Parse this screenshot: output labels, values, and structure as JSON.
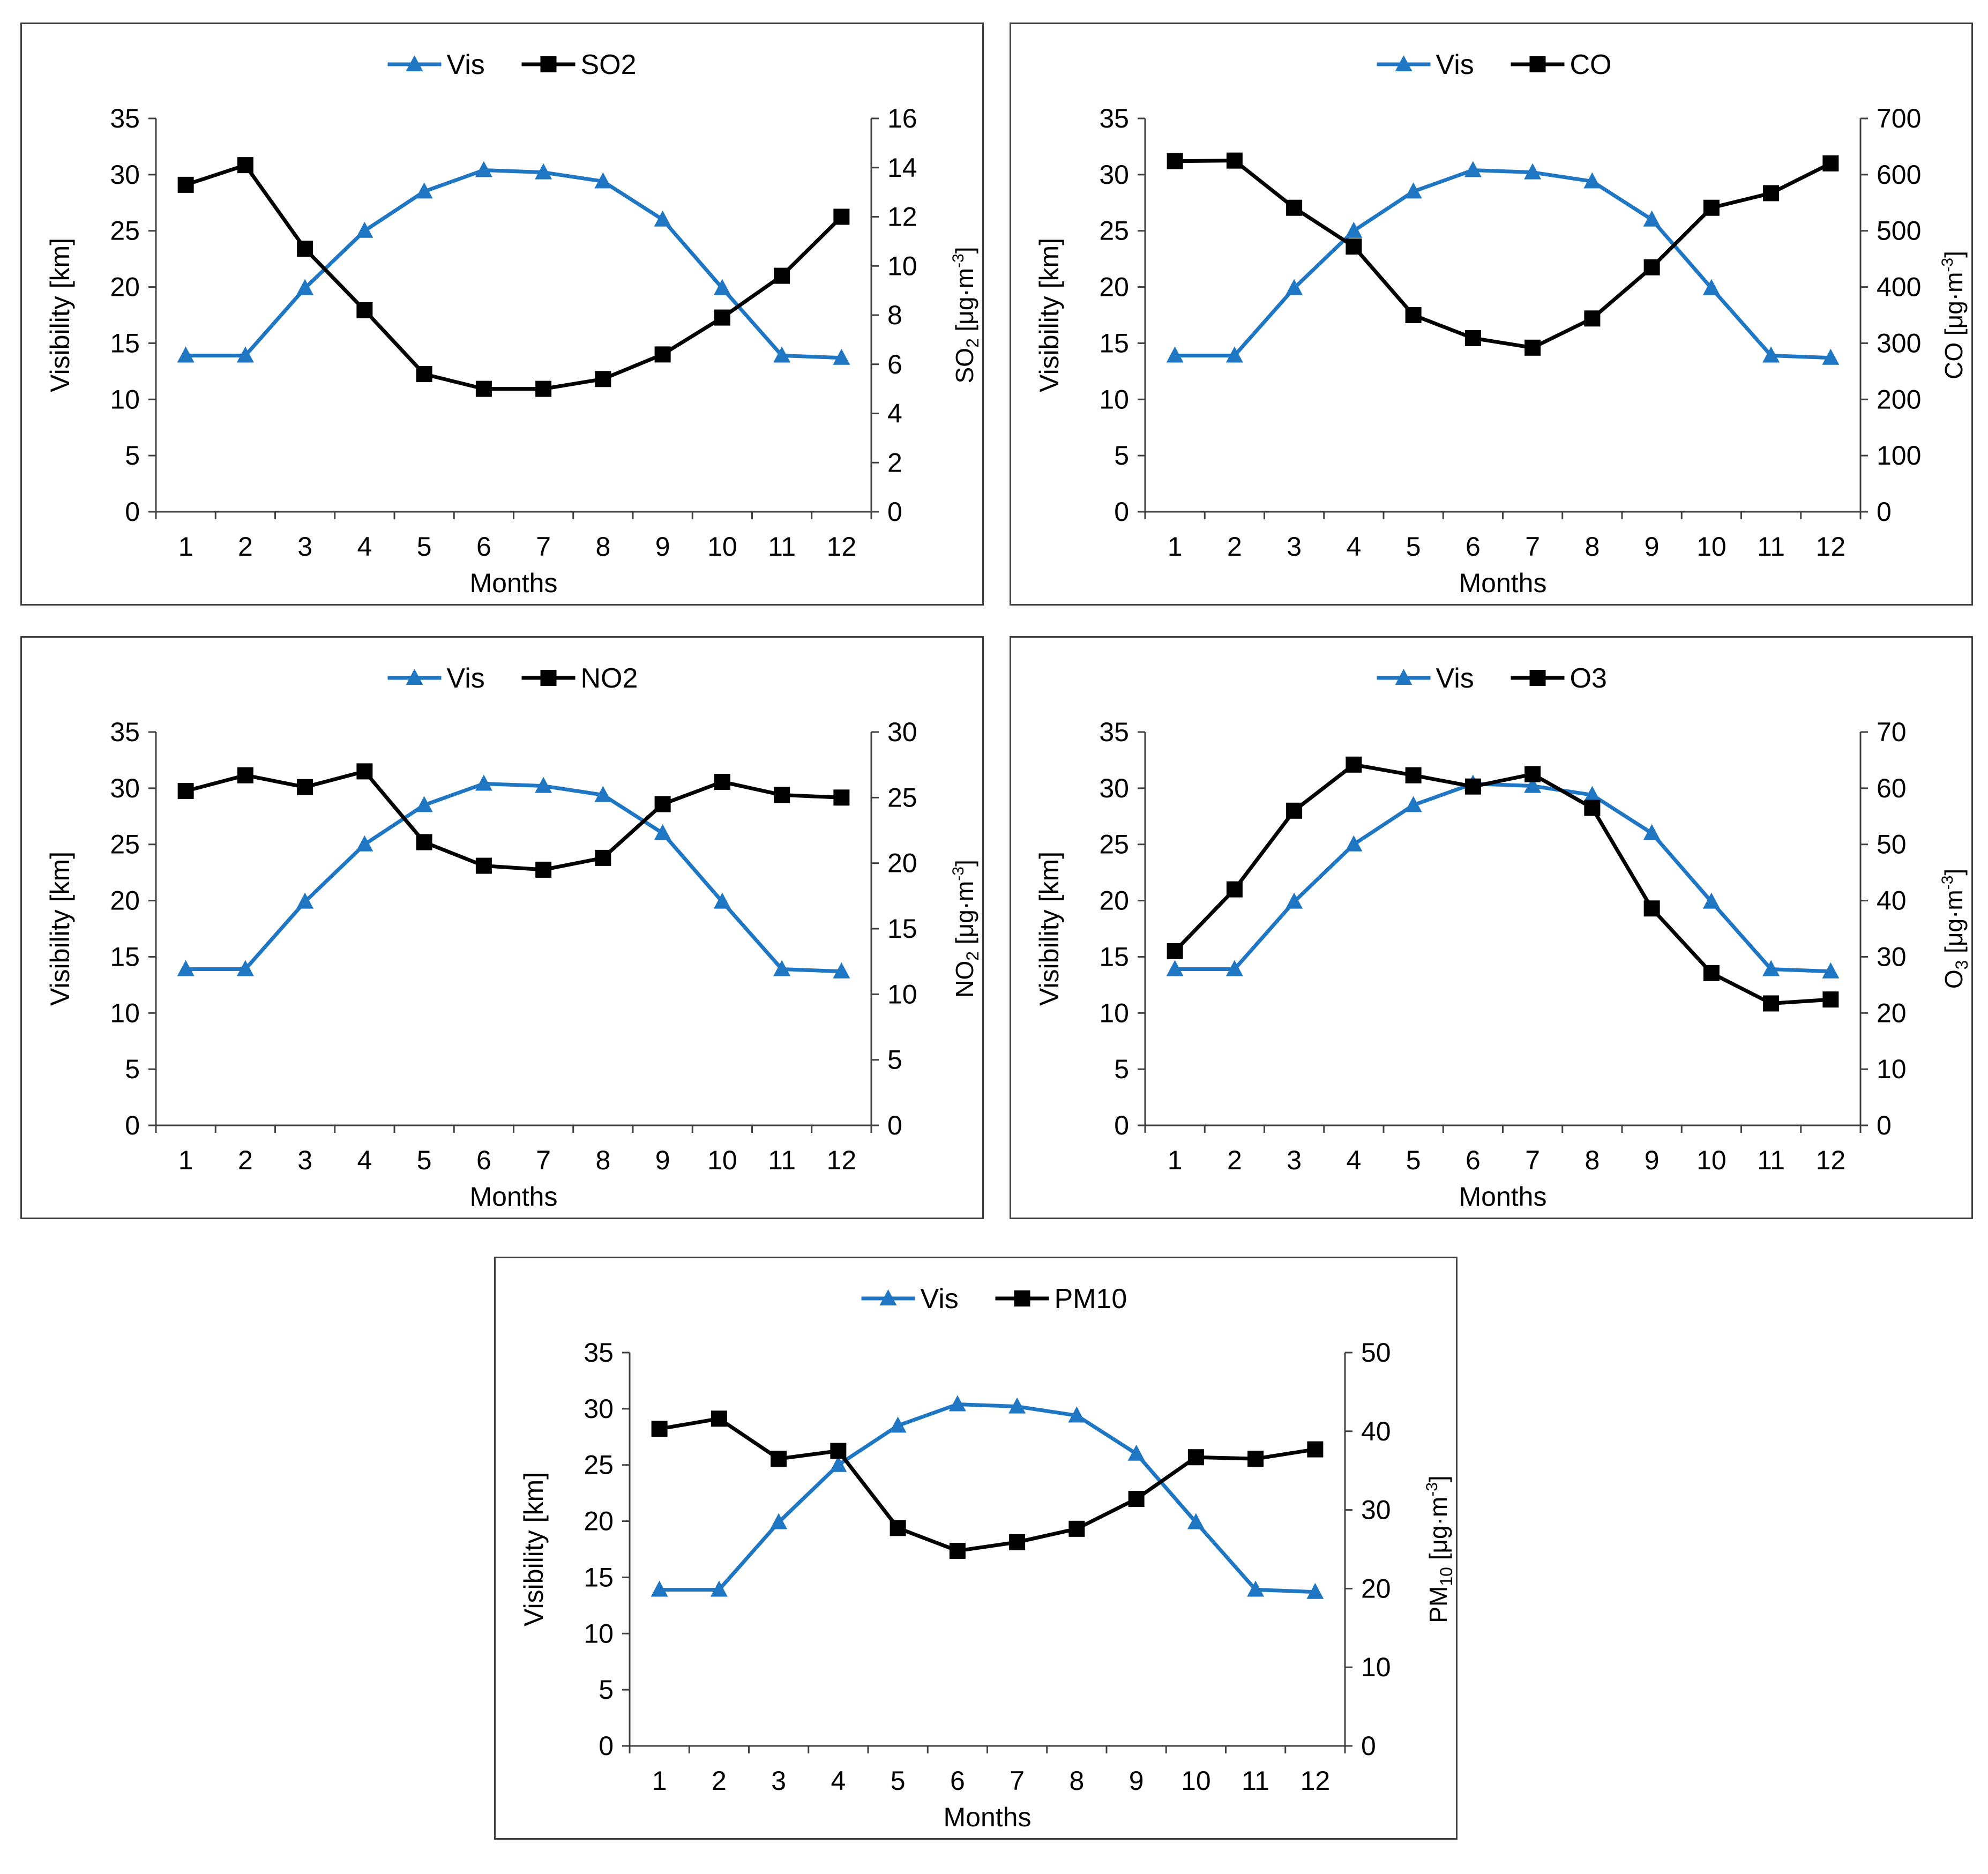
{
  "colors": {
    "vis": "#1f77c4",
    "pollutant": "#000000",
    "axis": "#404040"
  },
  "chart_data": [
    {
      "id": "so2",
      "type": "line",
      "categories": [
        "1",
        "2",
        "3",
        "4",
        "5",
        "6",
        "7",
        "8",
        "9",
        "10",
        "11",
        "12"
      ],
      "xlabel": "Months",
      "ylabel": "Visibility [km]",
      "ylim": [
        0,
        35
      ],
      "yticks": [
        "0",
        "5",
        "10",
        "15",
        "20",
        "25",
        "30",
        "35"
      ],
      "y2label": {
        "pre": "SO",
        "sub": "2",
        "post": " [μg·m",
        "sup": "-3",
        "end": "]"
      },
      "y2lim": [
        0,
        16
      ],
      "y2ticks": [
        "0",
        "2",
        "4",
        "6",
        "8",
        "10",
        "12",
        "14",
        "16"
      ],
      "legend": [
        "Vis",
        "SO2"
      ],
      "series": [
        {
          "name": "Vis",
          "axis": "left",
          "marker": "triangle",
          "values": [
            13.9,
            13.9,
            19.9,
            25.0,
            28.5,
            30.4,
            30.2,
            29.4,
            26.0,
            19.9,
            13.9,
            13.7
          ]
        },
        {
          "name": "SO2",
          "axis": "right",
          "marker": "square",
          "values": [
            13.3,
            14.1,
            10.7,
            8.2,
            5.6,
            5.0,
            5.0,
            5.4,
            6.4,
            7.9,
            9.6,
            12.0
          ]
        }
      ]
    },
    {
      "id": "co",
      "type": "line",
      "categories": [
        "1",
        "2",
        "3",
        "4",
        "5",
        "6",
        "7",
        "8",
        "9",
        "10",
        "11",
        "12"
      ],
      "xlabel": "Months",
      "ylabel": "Visibility [km]",
      "ylim": [
        0,
        35
      ],
      "yticks": [
        "0",
        "5",
        "10",
        "15",
        "20",
        "25",
        "30",
        "35"
      ],
      "y2label": {
        "pre": "CO",
        "sub": "",
        "post": " [μg·m",
        "sup": "-3",
        "end": "]"
      },
      "y2lim": [
        0,
        700
      ],
      "y2ticks": [
        "0",
        "100",
        "200",
        "300",
        "400",
        "500",
        "600",
        "700"
      ],
      "legend": [
        "Vis",
        "CO"
      ],
      "series": [
        {
          "name": "Vis",
          "axis": "left",
          "marker": "triangle",
          "values": [
            13.9,
            13.9,
            19.9,
            25.0,
            28.5,
            30.4,
            30.2,
            29.4,
            26.0,
            19.9,
            13.9,
            13.7
          ]
        },
        {
          "name": "CO",
          "axis": "right",
          "marker": "square",
          "values": [
            624,
            625,
            541,
            472,
            350,
            309,
            292,
            344,
            435,
            541,
            567,
            620
          ]
        }
      ]
    },
    {
      "id": "no2",
      "type": "line",
      "categories": [
        "1",
        "2",
        "3",
        "4",
        "5",
        "6",
        "7",
        "8",
        "9",
        "10",
        "11",
        "12"
      ],
      "xlabel": "Months",
      "ylabel": "Visibility [km]",
      "ylim": [
        0,
        35
      ],
      "yticks": [
        "0",
        "5",
        "10",
        "15",
        "20",
        "25",
        "30",
        "35"
      ],
      "y2label": {
        "pre": "NO",
        "sub": "2",
        "post": " [μg·m",
        "sup": "-3",
        "end": "]"
      },
      "y2lim": [
        0,
        30
      ],
      "y2ticks": [
        "0",
        "5",
        "10",
        "15",
        "20",
        "25",
        "30"
      ],
      "legend": [
        "Vis",
        "NO2"
      ],
      "series": [
        {
          "name": "Vis",
          "axis": "left",
          "marker": "triangle",
          "values": [
            13.9,
            13.9,
            19.9,
            25.0,
            28.5,
            30.4,
            30.2,
            29.4,
            26.0,
            19.9,
            13.9,
            13.7
          ]
        },
        {
          "name": "NO2",
          "axis": "right",
          "marker": "square",
          "values": [
            25.5,
            26.7,
            25.8,
            27.0,
            21.6,
            19.8,
            19.5,
            20.4,
            24.5,
            26.2,
            25.2,
            25.0
          ]
        }
      ]
    },
    {
      "id": "o3",
      "type": "line",
      "categories": [
        "1",
        "2",
        "3",
        "4",
        "5",
        "6",
        "7",
        "8",
        "9",
        "10",
        "11",
        "12"
      ],
      "xlabel": "Months",
      "ylabel": "Visibility [km]",
      "ylim": [
        0,
        35
      ],
      "yticks": [
        "0",
        "5",
        "10",
        "15",
        "20",
        "25",
        "30",
        "35"
      ],
      "y2label": {
        "pre": "O",
        "sub": "3",
        "post": " [μg·m",
        "sup": "-3",
        "end": "]"
      },
      "y2lim": [
        0,
        70
      ],
      "y2ticks": [
        "0",
        "10",
        "20",
        "30",
        "40",
        "50",
        "60",
        "70"
      ],
      "legend": [
        "Vis",
        "O3"
      ],
      "series": [
        {
          "name": "Vis",
          "axis": "left",
          "marker": "triangle",
          "values": [
            13.9,
            13.9,
            19.9,
            25.0,
            28.5,
            30.4,
            30.2,
            29.4,
            26.0,
            19.9,
            13.9,
            13.7
          ]
        },
        {
          "name": "O3",
          "axis": "right",
          "marker": "square",
          "values": [
            31.0,
            42.0,
            56.0,
            64.2,
            62.3,
            60.3,
            62.5,
            56.5,
            38.6,
            27.1,
            21.7,
            22.4
          ]
        }
      ]
    },
    {
      "id": "pm10",
      "type": "line",
      "categories": [
        "1",
        "2",
        "3",
        "4",
        "5",
        "6",
        "7",
        "8",
        "9",
        "10",
        "11",
        "12"
      ],
      "xlabel": "Months",
      "ylabel": "Visibility [km]",
      "ylim": [
        0,
        35
      ],
      "yticks": [
        "0",
        "5",
        "10",
        "15",
        "20",
        "25",
        "30",
        "35"
      ],
      "y2label": {
        "pre": "PM",
        "sub": "10",
        "post": " [μg·m",
        "sup": "-3",
        "end": "]"
      },
      "y2lim": [
        0,
        50
      ],
      "y2ticks": [
        "0",
        "10",
        "20",
        "30",
        "40",
        "50"
      ],
      "legend": [
        "Vis",
        "PM10"
      ],
      "series": [
        {
          "name": "Vis",
          "axis": "left",
          "marker": "triangle",
          "values": [
            13.9,
            13.9,
            19.9,
            25.0,
            28.5,
            30.4,
            30.2,
            29.4,
            26.0,
            19.9,
            13.9,
            13.7
          ]
        },
        {
          "name": "PM10",
          "axis": "right",
          "marker": "square",
          "values": [
            40.3,
            41.6,
            36.5,
            37.5,
            27.7,
            24.8,
            25.9,
            27.6,
            31.4,
            36.7,
            36.5,
            37.7
          ]
        }
      ]
    }
  ]
}
